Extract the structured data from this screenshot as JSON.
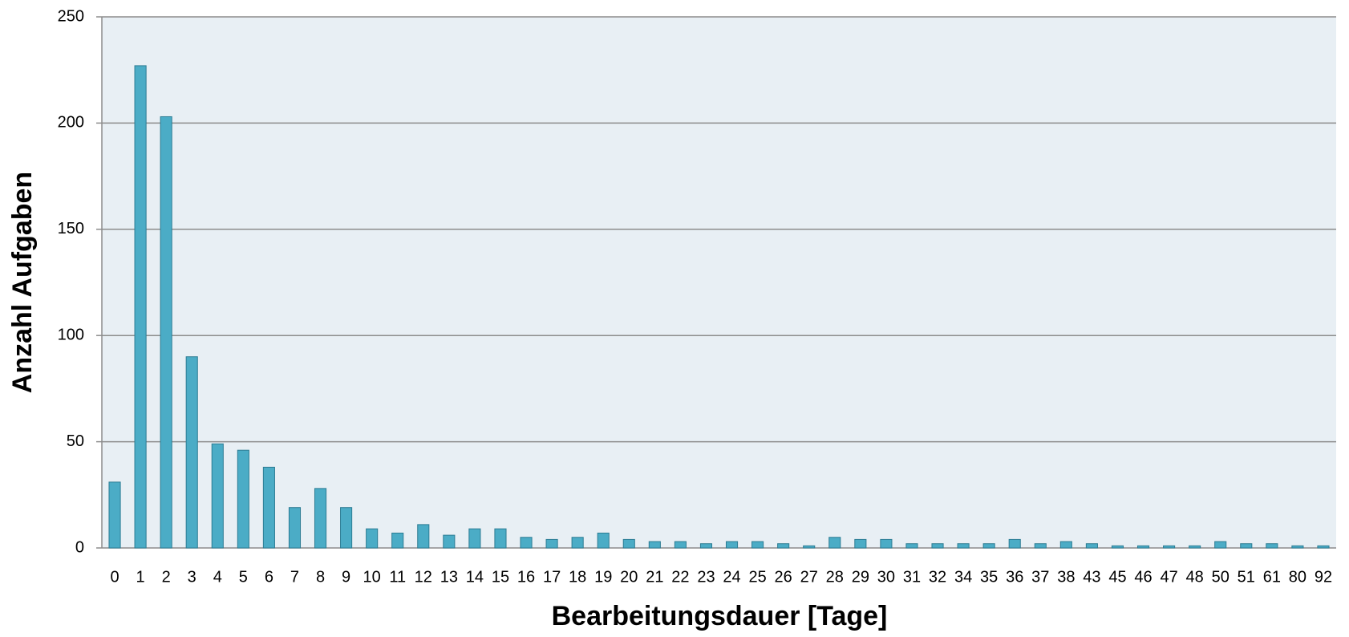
{
  "chart_data": {
    "type": "bar",
    "x_label": "Bearbeitungsdauer [Tage]",
    "y_label": "Anzahl Aufgaben",
    "categories": [
      "0",
      "1",
      "2",
      "3",
      "4",
      "5",
      "6",
      "7",
      "8",
      "9",
      "10",
      "11",
      "12",
      "13",
      "14",
      "15",
      "16",
      "17",
      "18",
      "19",
      "20",
      "21",
      "22",
      "23",
      "24",
      "25",
      "26",
      "27",
      "28",
      "29",
      "30",
      "31",
      "32",
      "34",
      "35",
      "36",
      "37",
      "38",
      "43",
      "45",
      "46",
      "47",
      "48",
      "50",
      "51",
      "61",
      "80",
      "92"
    ],
    "values": [
      31,
      227,
      203,
      90,
      49,
      46,
      38,
      19,
      28,
      19,
      9,
      7,
      11,
      6,
      9,
      9,
      5,
      4,
      5,
      7,
      4,
      3,
      3,
      2,
      3,
      3,
      2,
      1,
      5,
      4,
      4,
      2,
      2,
      2,
      2,
      4,
      2,
      3,
      2,
      1,
      1,
      1,
      1,
      3,
      2,
      2,
      1,
      1
    ],
    "color": "#4bacc6",
    "ylim": [
      0,
      250
    ],
    "yticks": [
      0,
      50,
      100,
      150,
      200,
      250
    ],
    "grid": true
  }
}
